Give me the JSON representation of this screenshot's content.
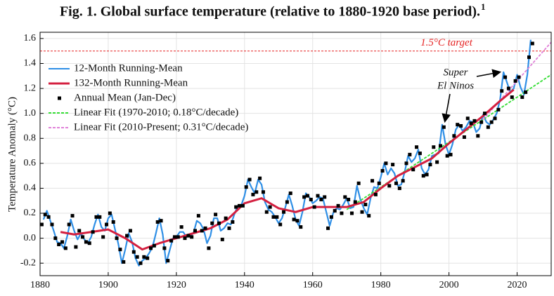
{
  "chart_data": {
    "type": "line",
    "title": "Fig. 1. Global surface temperature (relative to 1880-1920 base period).",
    "title_note": "1",
    "y_label": "Temperature Anomaly (°C)",
    "xlim": [
      1880,
      2030
    ],
    "ylim": [
      -0.3,
      1.65
    ],
    "xticks": [
      1880,
      1900,
      1920,
      1940,
      1960,
      1980,
      2000,
      2020
    ],
    "yticks": [
      -0.2,
      {
        "value": 0,
        "label": "0.0"
      },
      0.2,
      0.4,
      0.6,
      0.8,
      {
        "value": 1,
        "label": "1.0"
      },
      1.2,
      1.4,
      1.6
    ],
    "grid": true,
    "legend": "upper left",
    "target": {
      "value": 1.5,
      "label": "1.5°C target",
      "color": "#e52222"
    },
    "annotation": [
      "Super",
      "El Ninos"
    ],
    "series": [
      {
        "name": "12-Month Running-Mean",
        "color": "#2f8fe6",
        "style": "line",
        "x": [
          1881,
          1882,
          1883,
          1884,
          1885,
          1886,
          1887,
          1888,
          1889,
          1890,
          1891,
          1892,
          1893,
          1894,
          1895,
          1896,
          1897,
          1898,
          1899,
          1900,
          1901,
          1902,
          1903,
          1904,
          1905,
          1906,
          1907,
          1908,
          1909,
          1910,
          1911,
          1912,
          1913,
          1914,
          1915,
          1916,
          1917,
          1918,
          1919,
          1920,
          1921,
          1922,
          1923,
          1924,
          1925,
          1926,
          1927,
          1928,
          1929,
          1930,
          1931,
          1932,
          1933,
          1934,
          1935,
          1936,
          1937,
          1938,
          1939,
          1940,
          1941,
          1942,
          1943,
          1944,
          1945,
          1946,
          1947,
          1948,
          1949,
          1950,
          1951,
          1952,
          1953,
          1954,
          1955,
          1956,
          1957,
          1958,
          1959,
          1960,
          1961,
          1962,
          1963,
          1964,
          1965,
          1966,
          1967,
          1968,
          1969,
          1970,
          1971,
          1972,
          1973,
          1974,
          1975,
          1976,
          1977,
          1978,
          1979,
          1980,
          1981,
          1982,
          1983,
          1984,
          1985,
          1986,
          1987,
          1988,
          1989,
          1990,
          1991,
          1992,
          1993,
          1994,
          1995,
          1996,
          1997,
          1998,
          1999,
          2000,
          2001,
          2002,
          2003,
          2004,
          2005,
          2006,
          2007,
          2008,
          2009,
          2010,
          2011,
          2012,
          2013,
          2014,
          2015,
          2016,
          2017,
          2018,
          2019,
          2020,
          2021,
          2022,
          2023,
          2024
        ],
        "values": [
          0.15,
          0.22,
          0.14,
          0.06,
          -0.03,
          -0.04,
          -0.08,
          0.02,
          0.15,
          0.06,
          -0.01,
          0.04,
          -0.01,
          -0.04,
          0.01,
          0.11,
          0.19,
          0.09,
          0.06,
          0.16,
          0.19,
          0.07,
          -0.05,
          -0.2,
          -0.09,
          0.04,
          -0.03,
          -0.16,
          -0.22,
          -0.18,
          -0.16,
          -0.12,
          -0.07,
          0.04,
          0.16,
          0.03,
          -0.2,
          -0.1,
          0.0,
          0.01,
          0.05,
          0.05,
          0.01,
          0.02,
          0.04,
          0.14,
          0.12,
          0.07,
          -0.04,
          0.02,
          0.16,
          0.16,
          0.06,
          0.08,
          0.12,
          0.11,
          0.19,
          0.26,
          0.26,
          0.34,
          0.47,
          0.41,
          0.36,
          0.47,
          0.43,
          0.29,
          0.23,
          0.21,
          0.17,
          0.12,
          0.16,
          0.25,
          0.35,
          0.26,
          0.15,
          0.1,
          0.21,
          0.36,
          0.33,
          0.28,
          0.3,
          0.33,
          0.32,
          0.21,
          0.1,
          0.2,
          0.24,
          0.23,
          0.27,
          0.32,
          0.24,
          0.25,
          0.42,
          0.31,
          0.24,
          0.19,
          0.32,
          0.41,
          0.4,
          0.49,
          0.6,
          0.51,
          0.56,
          0.52,
          0.42,
          0.43,
          0.53,
          0.66,
          0.61,
          0.64,
          0.71,
          0.56,
          0.51,
          0.55,
          0.66,
          0.67,
          0.68,
          0.91,
          0.75,
          0.67,
          0.75,
          0.87,
          0.91,
          0.86,
          0.89,
          0.94,
          0.93,
          0.85,
          0.88,
          0.99,
          0.93,
          0.91,
          0.95,
          1.0,
          1.11,
          1.33,
          1.25,
          1.17,
          1.2,
          1.31,
          1.21,
          1.15,
          1.31,
          1.59
        ]
      },
      {
        "name": "132-Month Running-Mean",
        "color": "#d42040",
        "style": "thick",
        "x": [
          1886,
          1890,
          1895,
          1900,
          1905,
          1910,
          1915,
          1920,
          1925,
          1930,
          1935,
          1940,
          1945,
          1950,
          1955,
          1960,
          1965,
          1970,
          1975,
          1980,
          1985,
          1990,
          1995,
          2000,
          2005,
          2010,
          2015,
          2019
        ],
        "values": [
          0.05,
          0.03,
          0.05,
          0.07,
          0.0,
          -0.09,
          -0.04,
          0.0,
          0.04,
          0.08,
          0.15,
          0.28,
          0.32,
          0.24,
          0.21,
          0.25,
          0.25,
          0.25,
          0.29,
          0.4,
          0.5,
          0.57,
          0.64,
          0.76,
          0.87,
          0.98,
          1.1,
          1.19
        ]
      },
      {
        "name": "Annual Mean (Jan-Dec)",
        "color": "#000000",
        "style": "markers",
        "x": [
          1880,
          1881,
          1882,
          1883,
          1884,
          1885,
          1886,
          1887,
          1888,
          1889,
          1890,
          1891,
          1892,
          1893,
          1894,
          1895,
          1896,
          1897,
          1898,
          1899,
          1900,
          1901,
          1902,
          1903,
          1904,
          1905,
          1906,
          1907,
          1908,
          1909,
          1910,
          1911,
          1912,
          1913,
          1914,
          1915,
          1916,
          1917,
          1918,
          1919,
          1920,
          1921,
          1922,
          1923,
          1924,
          1925,
          1926,
          1927,
          1928,
          1929,
          1930,
          1931,
          1932,
          1933,
          1934,
          1935,
          1936,
          1937,
          1938,
          1939,
          1940,
          1941,
          1942,
          1943,
          1944,
          1945,
          1946,
          1947,
          1948,
          1949,
          1950,
          1951,
          1952,
          1953,
          1954,
          1955,
          1956,
          1957,
          1958,
          1959,
          1960,
          1961,
          1962,
          1963,
          1964,
          1965,
          1966,
          1967,
          1968,
          1969,
          1970,
          1971,
          1972,
          1973,
          1974,
          1975,
          1976,
          1977,
          1978,
          1979,
          1980,
          1981,
          1982,
          1983,
          1984,
          1985,
          1986,
          1987,
          1988,
          1989,
          1990,
          1991,
          1992,
          1993,
          1994,
          1995,
          1996,
          1997,
          1998,
          1999,
          2000,
          2001,
          2002,
          2003,
          2004,
          2005,
          2006,
          2007,
          2008,
          2009,
          2010,
          2011,
          2012,
          2013,
          2014,
          2015,
          2016,
          2017,
          2018,
          2019,
          2020,
          2021,
          2022,
          2023,
          2024
        ],
        "values": [
          0.11,
          0.19,
          0.17,
          0.11,
          0.0,
          -0.05,
          -0.03,
          -0.08,
          0.11,
          0.18,
          -0.07,
          0.06,
          0.01,
          -0.03,
          -0.04,
          0.05,
          0.17,
          0.17,
          0.01,
          0.11,
          0.2,
          0.13,
          0.0,
          -0.09,
          -0.19,
          0.02,
          0.06,
          -0.11,
          -0.15,
          -0.2,
          -0.15,
          -0.16,
          -0.08,
          -0.06,
          0.13,
          0.14,
          -0.08,
          -0.18,
          -0.02,
          0.01,
          0.01,
          0.09,
          0.0,
          0.02,
          0.01,
          0.06,
          0.18,
          0.06,
          0.08,
          -0.08,
          0.12,
          0.19,
          0.12,
          -0.01,
          0.16,
          0.08,
          0.13,
          0.25,
          0.26,
          0.26,
          0.41,
          0.47,
          0.35,
          0.37,
          0.48,
          0.37,
          0.21,
          0.25,
          0.17,
          0.17,
          0.11,
          0.21,
          0.29,
          0.36,
          0.15,
          0.14,
          0.09,
          0.33,
          0.34,
          0.31,
          0.25,
          0.34,
          0.31,
          0.33,
          0.08,
          0.17,
          0.22,
          0.26,
          0.2,
          0.33,
          0.31,
          0.2,
          0.29,
          0.44,
          0.21,
          0.27,
          0.18,
          0.46,
          0.35,
          0.44,
          0.54,
          0.6,
          0.42,
          0.59,
          0.44,
          0.4,
          0.46,
          0.6,
          0.67,
          0.55,
          0.73,
          0.68,
          0.5,
          0.51,
          0.59,
          0.73,
          0.61,
          0.74,
          0.89,
          0.66,
          0.67,
          0.82,
          0.91,
          0.9,
          0.81,
          0.96,
          0.92,
          0.94,
          0.82,
          0.93,
          1.0,
          0.89,
          0.93,
          0.96,
          1.03,
          1.18,
          1.29,
          1.2,
          1.13,
          1.26,
          1.29,
          1.13,
          1.17,
          1.45,
          1.56
        ]
      },
      {
        "name": "Linear Fit (1970-2010; 0.18°C/decade)",
        "color": "#33dd33",
        "style": "dashed",
        "x": [
          1970,
          2030
        ],
        "values": [
          0.23,
          1.31
        ]
      },
      {
        "name": "Linear Fit (2010-Present; 0.31°C/decade)",
        "color": "#e080d8",
        "style": "dashed",
        "x": [
          2010,
          2030
        ],
        "values": [
          0.95,
          1.57
        ]
      }
    ]
  }
}
